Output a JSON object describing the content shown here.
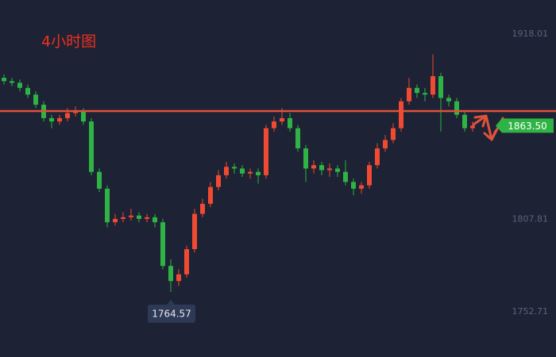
{
  "chart_data": {
    "type": "candlestick",
    "title": "4小时图",
    "up_color": "#f04a32",
    "down_color": "#2fb344",
    "open": [
      1892,
      1890,
      1889,
      1886,
      1882,
      1876,
      1868,
      1866,
      1868,
      1871,
      1872,
      1866,
      1836,
      1826,
      1806,
      1808,
      1809,
      1810,
      1808,
      1809,
      1806,
      1780,
      1771,
      1775,
      1790,
      1811,
      1817,
      1827,
      1834,
      1839,
      1838,
      1835,
      1836,
      1834,
      1862,
      1866,
      1868,
      1862,
      1850,
      1838,
      1840,
      1837,
      1838,
      1836,
      1830,
      1826,
      1828,
      1840,
      1850,
      1855,
      1862,
      1878,
      1886,
      1883,
      1882,
      1893,
      1880,
      1878,
      1870,
      1862
    ],
    "high": [
      1894,
      1892,
      1891,
      1888,
      1884,
      1878,
      1870,
      1870,
      1874,
      1875,
      1874,
      1868,
      1838,
      1828,
      1811,
      1812,
      1814,
      1812,
      1811,
      1811,
      1808,
      1784,
      1778,
      1792,
      1814,
      1820,
      1830,
      1837,
      1842,
      1841,
      1840,
      1838,
      1838,
      1864,
      1869,
      1874,
      1871,
      1864,
      1852,
      1843,
      1842,
      1841,
      1840,
      1843,
      1832,
      1830,
      1842,
      1853,
      1858,
      1865,
      1880,
      1892,
      1888,
      1886,
      1906,
      1895,
      1882,
      1880,
      1872,
      1866
    ],
    "low": [
      1888,
      1887,
      1884,
      1880,
      1874,
      1866,
      1862,
      1864,
      1866,
      1869,
      1864,
      1834,
      1824,
      1803,
      1804,
      1806,
      1807,
      1806,
      1806,
      1803,
      1778,
      1764.57,
      1768,
      1773,
      1788,
      1809,
      1815,
      1825,
      1832,
      1835,
      1833,
      1832,
      1829,
      1832,
      1860,
      1864,
      1860,
      1848,
      1830,
      1835,
      1834,
      1833,
      1833,
      1828,
      1822,
      1823,
      1826,
      1838,
      1848,
      1853,
      1860,
      1876,
      1880,
      1878,
      1880,
      1860,
      1875,
      1868,
      1860,
      1860
    ],
    "close": [
      1890,
      1889,
      1886,
      1882,
      1876,
      1868,
      1866,
      1868,
      1871,
      1872,
      1866,
      1836,
      1826,
      1806,
      1808,
      1809,
      1810,
      1808,
      1809,
      1806,
      1780,
      1771,
      1775,
      1790,
      1811,
      1817,
      1827,
      1834,
      1839,
      1838,
      1835,
      1836,
      1834,
      1862,
      1866,
      1868,
      1862,
      1850,
      1838,
      1840,
      1837,
      1838,
      1836,
      1830,
      1826,
      1828,
      1840,
      1850,
      1855,
      1862,
      1878,
      1886,
      1883,
      1882,
      1893,
      1880,
      1878,
      1870,
      1862,
      1863.5
    ],
    "ylim": [
      1725.78,
      1938.33
    ],
    "yticks": [
      1918.01,
      1807.81,
      1752.71
    ],
    "reference_line": {
      "value": 1872.18,
      "color": "#e0523a"
    },
    "last_price": {
      "value": 1863.5,
      "label": "1863.50",
      "color": "#2fb344"
    },
    "low_marker": 1764.57
  }
}
